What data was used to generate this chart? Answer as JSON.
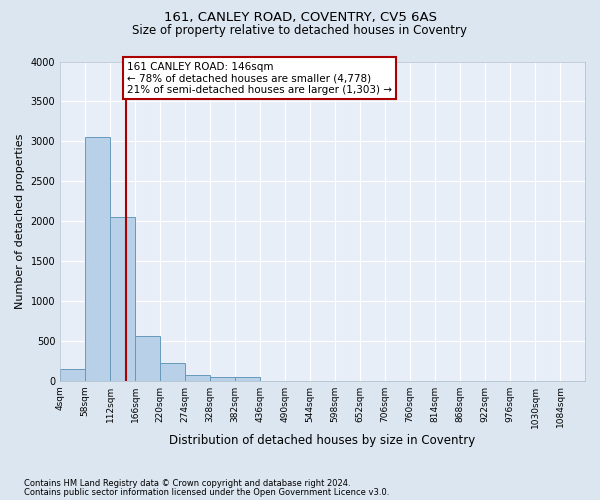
{
  "title1": "161, CANLEY ROAD, COVENTRY, CV5 6AS",
  "title2": "Size of property relative to detached houses in Coventry",
  "xlabel": "Distribution of detached houses by size in Coventry",
  "ylabel": "Number of detached properties",
  "footnote1": "Contains HM Land Registry data © Crown copyright and database right 2024.",
  "footnote2": "Contains public sector information licensed under the Open Government Licence v3.0.",
  "bin_edges": [
    4,
    58,
    112,
    166,
    220,
    274,
    328,
    382,
    436,
    490,
    544,
    598,
    652,
    706,
    760,
    814,
    868,
    922,
    976,
    1030,
    1084
  ],
  "bar_heights": [
    145,
    3055,
    2050,
    560,
    220,
    75,
    50,
    50,
    0,
    0,
    0,
    0,
    0,
    0,
    0,
    0,
    0,
    0,
    0,
    0
  ],
  "bar_face_color": "#b8d0e8",
  "bar_edge_color": "#6699bb",
  "property_size": 146,
  "red_line_color": "#aa0000",
  "annotation_line1": "161 CANLEY ROAD: 146sqm",
  "annotation_line2": "← 78% of detached houses are smaller (4,778)",
  "annotation_line3": "21% of semi-detached houses are larger (1,303) →",
  "annotation_box_edgecolor": "#aa0000",
  "ylim": [
    0,
    4000
  ],
  "yticks": [
    0,
    500,
    1000,
    1500,
    2000,
    2500,
    3000,
    3500,
    4000
  ],
  "fig_bg_color": "#dce6f0",
  "plot_bg_color": "#e8eef8",
  "grid_color": "#ffffff",
  "title1_fontsize": 9.5,
  "title2_fontsize": 8.5,
  "ylabel_fontsize": 8,
  "xlabel_fontsize": 8.5,
  "tick_fontsize": 6.5,
  "footnote_fontsize": 6
}
